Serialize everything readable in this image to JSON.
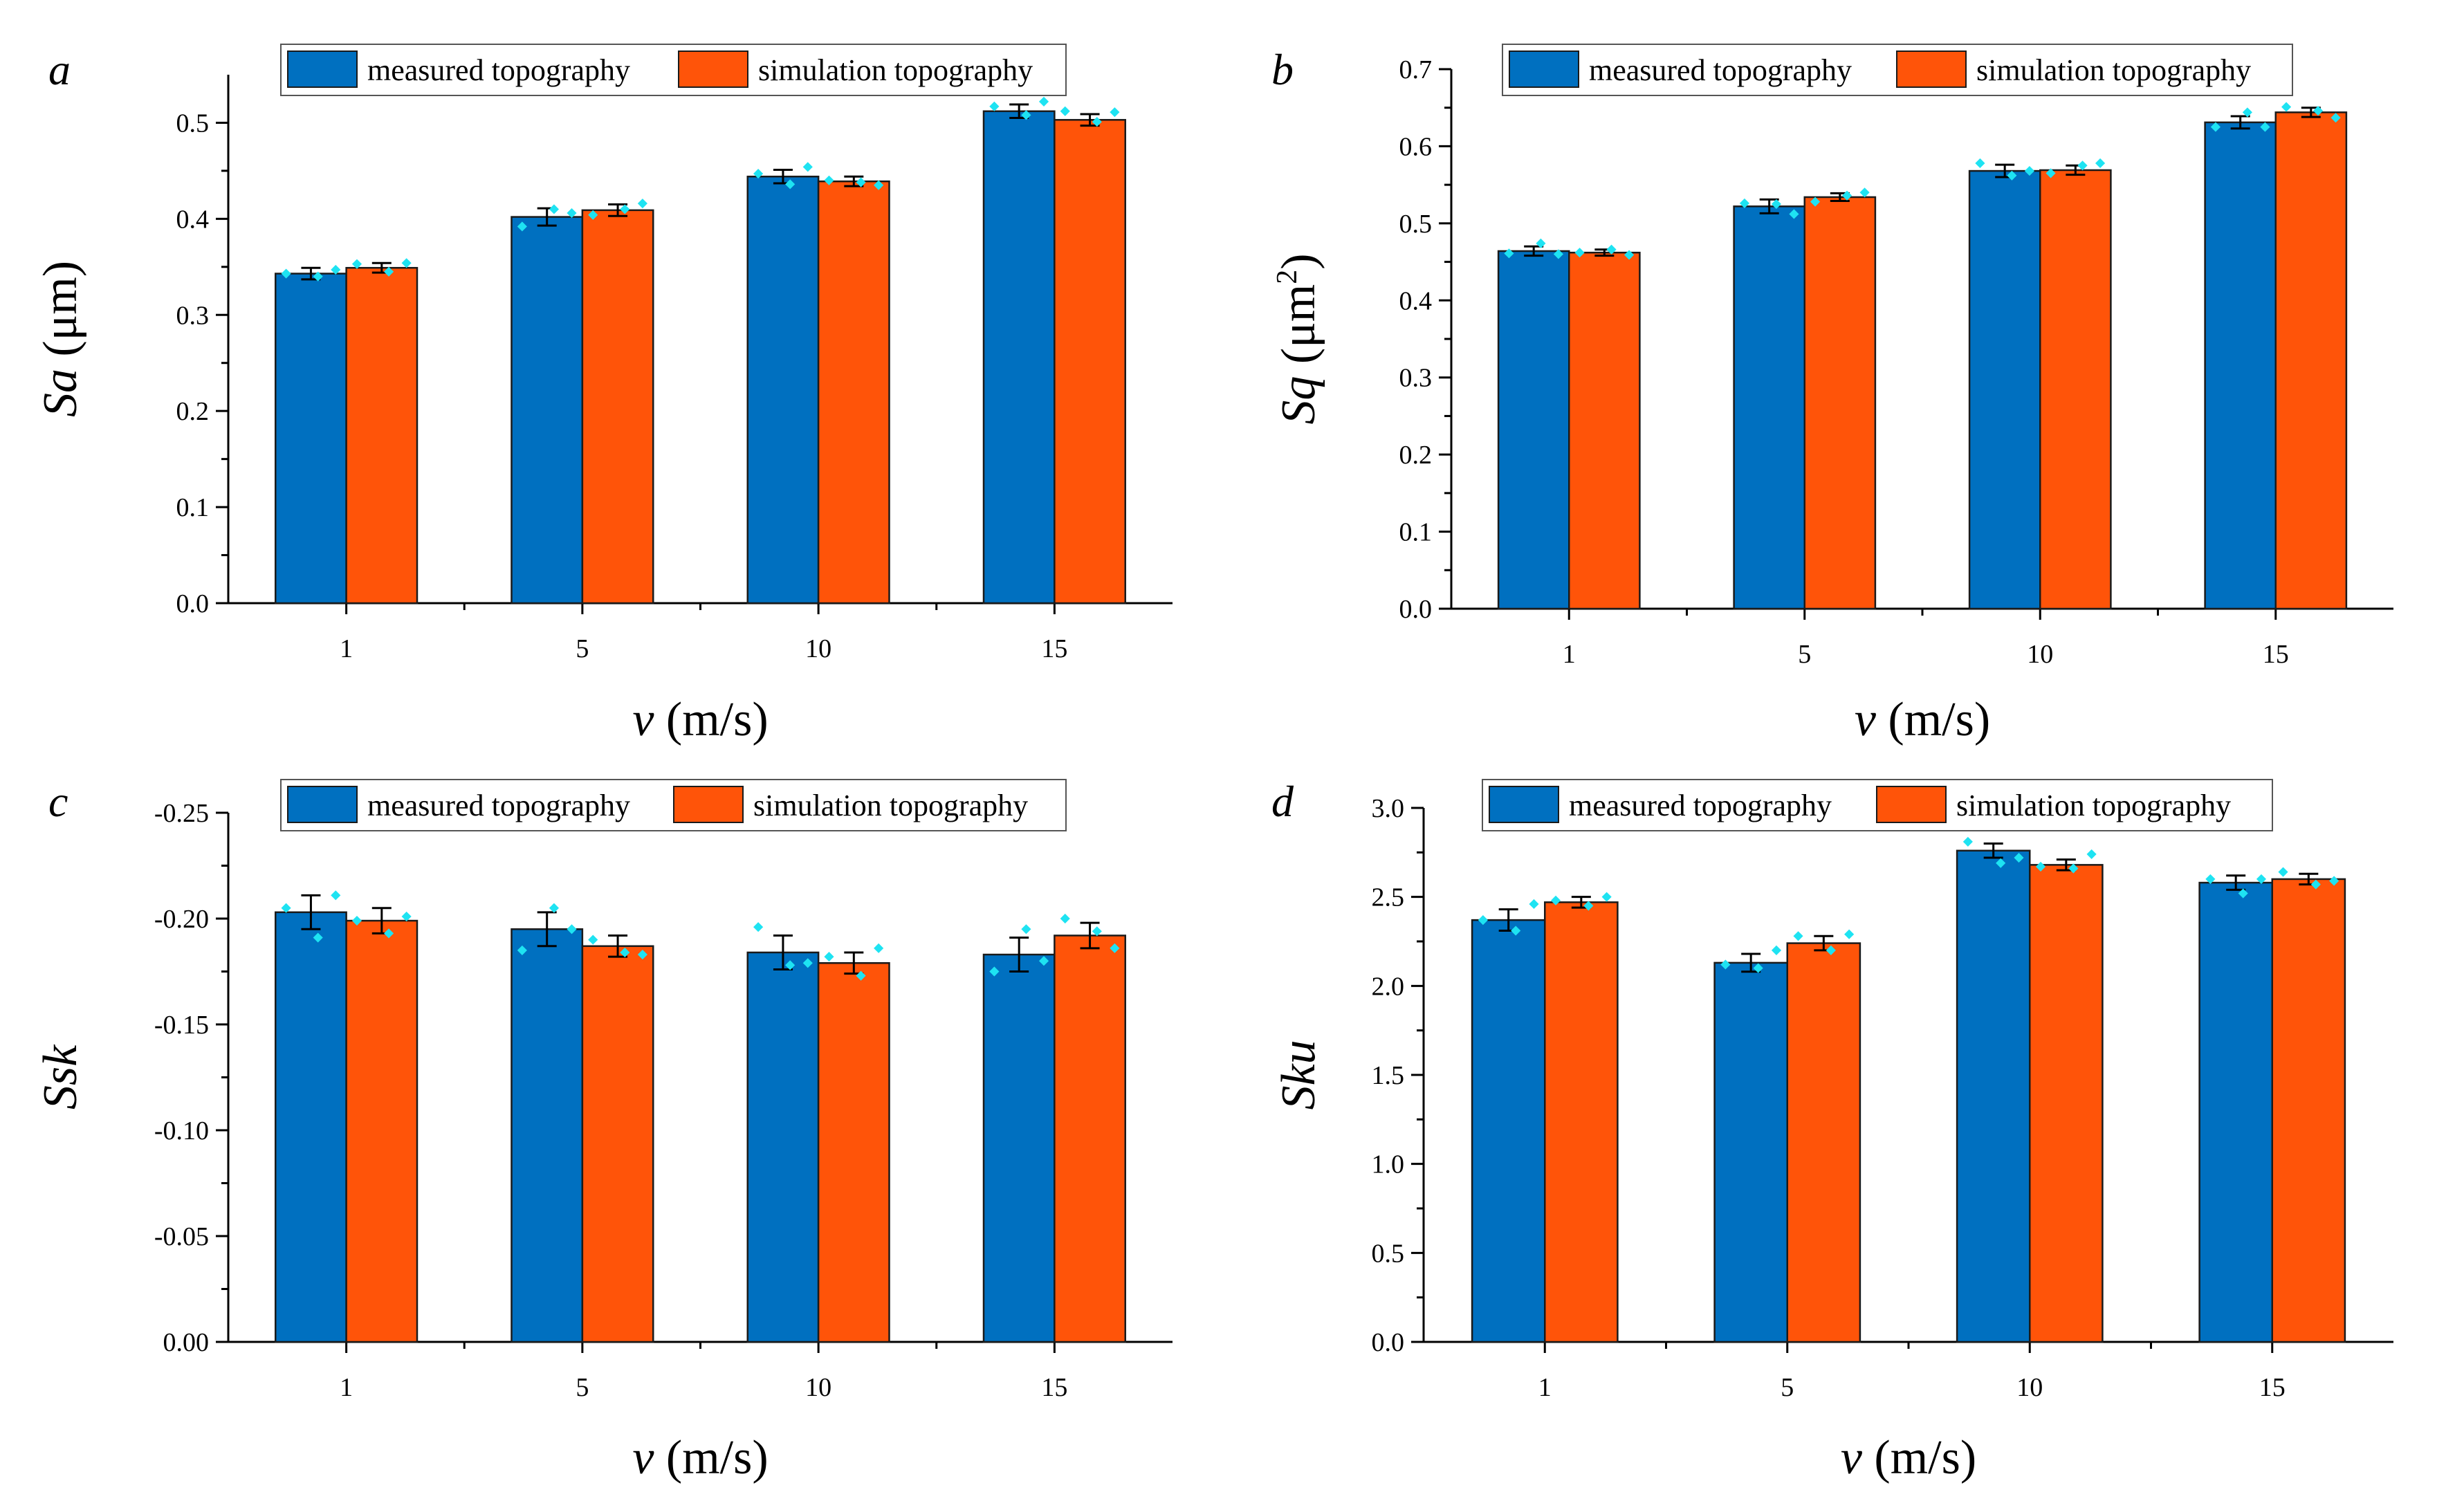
{
  "figure": {
    "legend_labels": [
      "measured topography",
      "simulation topography"
    ],
    "colors": {
      "measured": "#0070c0",
      "simulation": "#ff5409",
      "points": "#1ee3f2"
    }
  },
  "chart_data": [
    {
      "panel": "a",
      "type": "bar",
      "title": "",
      "xlabel": "v (m/s)",
      "xlabel_var": "v",
      "xlabel_unit": " (m/s)",
      "ylabel": "Sa (μm)",
      "ylabel_var": "Sa",
      "ylabel_unit": " (μm)",
      "ylabel_sup": "",
      "ylabel_close": "",
      "categories": [
        "1",
        "5",
        "10",
        "15"
      ],
      "ylim": [
        0,
        0.55
      ],
      "yticks": [
        0.0,
        0.1,
        0.2,
        0.3,
        0.4,
        0.5
      ],
      "ytick_labels": [
        "0.0",
        "0.1",
        "0.2",
        "0.3",
        "0.4",
        "0.5"
      ],
      "inverted": false,
      "legend": "top",
      "series": [
        {
          "name": "measured topography",
          "values": [
            0.343,
            0.402,
            0.444,
            0.512
          ],
          "errors": [
            0.006,
            0.009,
            0.007,
            0.007
          ],
          "points": [
            [
              0.343,
              0.34,
              0.347
            ],
            [
              0.392,
              0.41,
              0.406
            ],
            [
              0.447,
              0.436,
              0.454
            ],
            [
              0.517,
              0.508,
              0.522
            ]
          ]
        },
        {
          "name": "simulation topography",
          "values": [
            0.349,
            0.409,
            0.439,
            0.503
          ],
          "errors": [
            0.005,
            0.006,
            0.005,
            0.006
          ],
          "points": [
            [
              0.353,
              0.345,
              0.354
            ],
            [
              0.404,
              0.41,
              0.416
            ],
            [
              0.44,
              0.438,
              0.435
            ],
            [
              0.512,
              0.501,
              0.511
            ]
          ]
        }
      ]
    },
    {
      "panel": "b",
      "type": "bar",
      "title": "",
      "xlabel": "v (m/s)",
      "xlabel_var": "v",
      "xlabel_unit": " (m/s)",
      "ylabel": "Sq (μm2)",
      "ylabel_var": "Sq",
      "ylabel_unit": " (μm",
      "ylabel_sup": "2",
      "ylabel_close": ")",
      "categories": [
        "1",
        "5",
        "10",
        "15"
      ],
      "ylim": [
        0,
        0.7
      ],
      "yticks": [
        0.0,
        0.1,
        0.2,
        0.3,
        0.4,
        0.5,
        0.6,
        0.7
      ],
      "ytick_labels": [
        "0.0",
        "0.1",
        "0.2",
        "0.3",
        "0.4",
        "0.5",
        "0.6",
        "0.7"
      ],
      "inverted": false,
      "legend": "top",
      "series": [
        {
          "name": "measured topography",
          "values": [
            0.464,
            0.522,
            0.568,
            0.631
          ],
          "errors": [
            0.006,
            0.009,
            0.008,
            0.008
          ],
          "points": [
            [
              0.461,
              0.474,
              0.46
            ],
            [
              0.526,
              0.525,
              0.512
            ],
            [
              0.578,
              0.562,
              0.568
            ],
            [
              0.625,
              0.644,
              0.625
            ]
          ]
        },
        {
          "name": "simulation topography",
          "values": [
            0.462,
            0.534,
            0.569,
            0.644
          ],
          "errors": [
            0.004,
            0.005,
            0.006,
            0.006
          ],
          "points": [
            [
              0.462,
              0.466,
              0.459
            ],
            [
              0.528,
              0.536,
              0.54
            ],
            [
              0.565,
              0.575,
              0.578
            ],
            [
              0.651,
              0.646,
              0.637
            ]
          ]
        }
      ]
    },
    {
      "panel": "c",
      "type": "bar",
      "title": "",
      "xlabel": "v (m/s)",
      "xlabel_var": "v",
      "xlabel_unit": " (m/s)",
      "ylabel": "Ssk",
      "ylabel_var": "Ssk",
      "ylabel_unit": "",
      "ylabel_sup": "",
      "ylabel_close": "",
      "categories": [
        "1",
        "5",
        "10",
        "15"
      ],
      "ylim": [
        0,
        -0.25
      ],
      "yticks": [
        0.0,
        -0.05,
        -0.1,
        -0.15,
        -0.2,
        -0.25
      ],
      "ytick_labels": [
        "0.00",
        "-0.05",
        "-0.10",
        "-0.15",
        "-0.20",
        "-0.25"
      ],
      "inverted": true,
      "legend": "top",
      "series": [
        {
          "name": "measured topography",
          "values": [
            -0.203,
            -0.195,
            -0.184,
            -0.183
          ],
          "errors": [
            0.008,
            0.008,
            0.008,
            0.008
          ],
          "points": [
            [
              -0.205,
              -0.191,
              -0.211
            ],
            [
              -0.185,
              -0.205,
              -0.195
            ],
            [
              -0.196,
              -0.178,
              -0.179
            ],
            [
              -0.175,
              -0.195,
              -0.18
            ]
          ]
        },
        {
          "name": "simulation topography",
          "values": [
            -0.199,
            -0.187,
            -0.179,
            -0.192
          ],
          "errors": [
            0.006,
            0.005,
            0.005,
            0.006
          ],
          "points": [
            [
              -0.199,
              -0.193,
              -0.201
            ],
            [
              -0.19,
              -0.184,
              -0.183
            ],
            [
              -0.182,
              -0.173,
              -0.186
            ],
            [
              -0.2,
              -0.194,
              -0.186
            ]
          ]
        }
      ]
    },
    {
      "panel": "d",
      "type": "bar",
      "title": "",
      "xlabel": "v (m/s)",
      "xlabel_var": "v",
      "xlabel_unit": " (m/s)",
      "ylabel": "Sku",
      "ylabel_var": "Sku",
      "ylabel_unit": "",
      "ylabel_sup": "",
      "ylabel_close": "",
      "categories": [
        "1",
        "5",
        "10",
        "15"
      ],
      "ylim": [
        0,
        3.0
      ],
      "yticks": [
        0.0,
        0.5,
        1.0,
        1.5,
        2.0,
        2.5,
        3.0
      ],
      "ytick_labels": [
        "0.0",
        "0.5",
        "1.0",
        "1.5",
        "2.0",
        "2.5",
        "3.0"
      ],
      "inverted": false,
      "legend": "top",
      "series": [
        {
          "name": "measured topography",
          "values": [
            2.37,
            2.13,
            2.76,
            2.58
          ],
          "errors": [
            0.06,
            0.05,
            0.04,
            0.04
          ],
          "points": [
            [
              2.37,
              2.31,
              2.46
            ],
            [
              2.12,
              2.1,
              2.2
            ],
            [
              2.81,
              2.69,
              2.72
            ],
            [
              2.6,
              2.52,
              2.6
            ]
          ]
        },
        {
          "name": "simulation topography",
          "values": [
            2.47,
            2.24,
            2.68,
            2.6
          ],
          "errors": [
            0.03,
            0.04,
            0.03,
            0.03
          ],
          "points": [
            [
              2.48,
              2.45,
              2.5
            ],
            [
              2.28,
              2.2,
              2.29
            ],
            [
              2.67,
              2.66,
              2.74
            ],
            [
              2.64,
              2.57,
              2.59
            ]
          ]
        }
      ]
    }
  ]
}
